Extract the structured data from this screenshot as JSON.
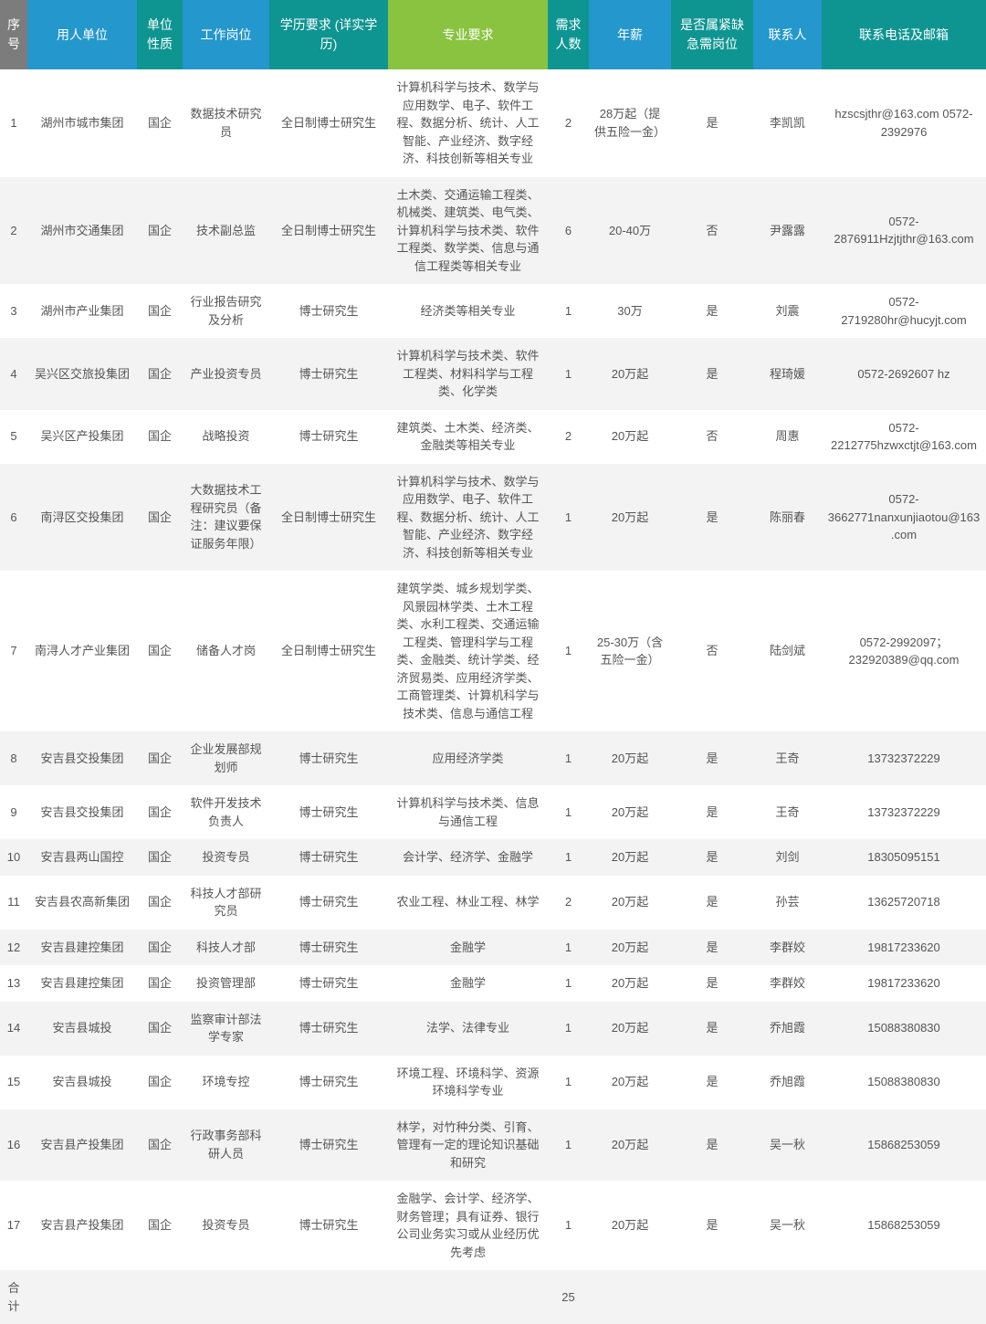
{
  "header_colors": [
    "#7c7c7c",
    "#2497cc",
    "#0e9591",
    "#2497cc",
    "#0e9591",
    "#8ac340",
    "#0e9591",
    "#2497cc",
    "#0e9591",
    "#2497cc",
    "#0e9591"
  ],
  "columns": [
    "序号",
    "用人单位",
    "单位性质",
    "工作岗位",
    "学历要求 (详实学历)",
    "专业要求",
    "需求人数",
    "年薪",
    "是否属紧缺急需岗位",
    "联系人",
    "联系电话及邮箱"
  ],
  "rows": [
    [
      "1",
      "湖州市城市集团",
      "国企",
      "数据技术研究员",
      "全日制博士研究生",
      "计算机科学与技术、数学与应用数学、电子、软件工程、数据分析、统计、人工智能、产业经济、数字经济、科技创新等相关专业",
      "2",
      "28万起（提供五险一金）",
      "是",
      "李凯凯",
      "hzscsjthr@163.com 0572-2392976"
    ],
    [
      "2",
      "湖州市交通集团",
      "国企",
      "技术副总监",
      "全日制博士研究生",
      "土木类、交通运输工程类、机械类、建筑类、电气类、计算机科学与技术类、软件工程类、数学类、信息与通信工程类等相关专业",
      "6",
      "20-40万",
      "否",
      "尹露露",
      "0572-2876911Hzjtjthr@163.com"
    ],
    [
      "3",
      "湖州市产业集团",
      "国企",
      "行业报告研究及分析",
      "博士研究生",
      "经济类等相关专业",
      "1",
      "30万",
      "是",
      "刘震",
      "0572-2719280hr@hucyjt.com"
    ],
    [
      "4",
      "吴兴区交旅投集团",
      "国企",
      "产业投资专员",
      "博士研究生",
      "计算机科学与技术类、软件工程类、材料科学与工程类、化学类",
      "1",
      "20万起",
      "是",
      "程琦媛",
      "0572-2692607 hz"
    ],
    [
      "5",
      "吴兴区产投集团",
      "国企",
      "战略投资",
      "博士研究生",
      "建筑类、土木类、经济类、金融类等相关专业",
      "2",
      "20万起",
      "否",
      "周惠",
      "0572-2212775hzwxctjt@163.com"
    ],
    [
      "6",
      "南浔区交投集团",
      "国企",
      "大数据技术工程研究员（备注：建议要保证服务年限）",
      "全日制博士研究生",
      "计算机科学与技术、数学与应用数学、电子、软件工程、数据分析、统计、人工智能、产业经济、数字经济、科技创新等相关专业",
      "1",
      "20万起",
      "是",
      "陈丽春",
      "0572-3662771nanxunjiaotou@163.com"
    ],
    [
      "7",
      "南浔人才产业集团",
      "国企",
      "储备人才岗",
      "全日制博士研究生",
      "建筑学类、城乡规划学类、风景园林学类、土木工程类、水利工程类、交通运输工程类、管理科学与工程类、金融类、统计学类、经济贸易类、应用经济学类、工商管理类、计算机科学与技术类、信息与通信工程",
      "1",
      "25-30万（含五险一金）",
      "否",
      "陆剑斌",
      "0572-2992097；232920389@qq.com"
    ],
    [
      "8",
      "安吉县交投集团",
      "国企",
      "企业发展部规划师",
      "博士研究生",
      "应用经济学类",
      "1",
      "20万起",
      "是",
      "王奇",
      "13732372229"
    ],
    [
      "9",
      "安吉县交投集团",
      "国企",
      "软件开发技术负责人",
      "博士研究生",
      "计算机科学与技术类、信息与通信工程",
      "1",
      "20万起",
      "是",
      "王奇",
      "13732372229"
    ],
    [
      "10",
      "安吉县两山国控",
      "国企",
      "投资专员",
      "博士研究生",
      "会计学、经济学、金融学",
      "1",
      "20万起",
      "是",
      "刘剑",
      "18305095151"
    ],
    [
      "11",
      "安吉县农高新集团",
      "国企",
      "科技人才部研究员",
      "博士研究生",
      "农业工程、林业工程、林学",
      "2",
      "20万起",
      "是",
      "孙芸",
      "13625720718"
    ],
    [
      "12",
      "安吉县建控集团",
      "国企",
      "科技人才部",
      "博士研究生",
      "金融学",
      "1",
      "20万起",
      "是",
      "李群姣",
      "19817233620"
    ],
    [
      "13",
      "安吉县建控集团",
      "国企",
      "投资管理部",
      "博士研究生",
      "金融学",
      "1",
      "20万起",
      "是",
      "李群姣",
      "19817233620"
    ],
    [
      "14",
      "安吉县城投",
      "国企",
      "监察审计部法学专家",
      "博士研究生",
      "法学、法律专业",
      "1",
      "20万起",
      "是",
      "乔旭霞",
      "15088380830"
    ],
    [
      "15",
      "安吉县城投",
      "国企",
      "环境专控",
      "博士研究生",
      "环境工程、环境科学、资源环境科学专业",
      "1",
      "20万起",
      "是",
      "乔旭霞",
      "15088380830"
    ],
    [
      "16",
      "安吉县产投集团",
      "国企",
      "行政事务部科研人员",
      "博士研究生",
      "林学，对竹种分类、引育、管理有一定的理论知识基础和研究",
      "1",
      "20万起",
      "是",
      "吴一秋",
      "15868253059"
    ],
    [
      "17",
      "安吉县产投集团",
      "国企",
      "投资专员",
      "博士研究生",
      "金融学、会计学、经济学、财务管理；具有证券、银行公司业务实习或从业经历优先考虑",
      "1",
      "20万起",
      "是",
      "吴一秋",
      "15868253059"
    ]
  ],
  "footer": {
    "label": "合计",
    "total": "25"
  }
}
